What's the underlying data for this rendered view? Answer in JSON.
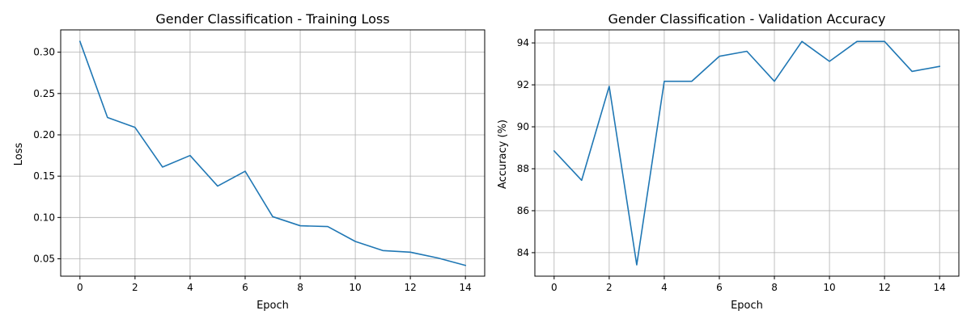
{
  "chart_data": [
    {
      "type": "line",
      "title": "Gender Classification - Training Loss",
      "xlabel": "Epoch",
      "ylabel": "Loss",
      "xlim": [
        -0.7,
        14.7
      ],
      "ylim": [
        0.029,
        0.327
      ],
      "xticks": [
        0,
        2,
        4,
        6,
        8,
        10,
        12,
        14
      ],
      "yticks": [
        0.05,
        0.1,
        0.15,
        0.2,
        0.25,
        0.3
      ],
      "ytick_decimals": 2,
      "grid": true,
      "color": "#1f77b4",
      "x": [
        0,
        1,
        2,
        3,
        4,
        5,
        6,
        7,
        8,
        9,
        10,
        11,
        12,
        13,
        14
      ],
      "values": [
        0.313,
        0.221,
        0.209,
        0.161,
        0.175,
        0.138,
        0.156,
        0.101,
        0.09,
        0.089,
        0.071,
        0.06,
        0.058,
        0.051,
        0.042
      ]
    },
    {
      "type": "line",
      "title": "Gender Classification - Validation Accuracy",
      "xlabel": "Epoch",
      "ylabel": "Accuracy (%)",
      "xlim": [
        -0.7,
        14.7
      ],
      "ylim": [
        82.88,
        94.62
      ],
      "xticks": [
        0,
        2,
        4,
        6,
        8,
        10,
        12,
        14
      ],
      "yticks": [
        84,
        86,
        88,
        90,
        92,
        94
      ],
      "ytick_decimals": 0,
      "grid": true,
      "color": "#1f77b4",
      "x": [
        0,
        1,
        2,
        3,
        4,
        5,
        6,
        7,
        8,
        9,
        10,
        11,
        12,
        13,
        14
      ],
      "values": [
        88.85,
        87.45,
        91.93,
        83.42,
        92.17,
        92.17,
        93.36,
        93.6,
        92.17,
        94.07,
        93.12,
        94.07,
        94.07,
        92.64,
        92.88
      ]
    }
  ]
}
